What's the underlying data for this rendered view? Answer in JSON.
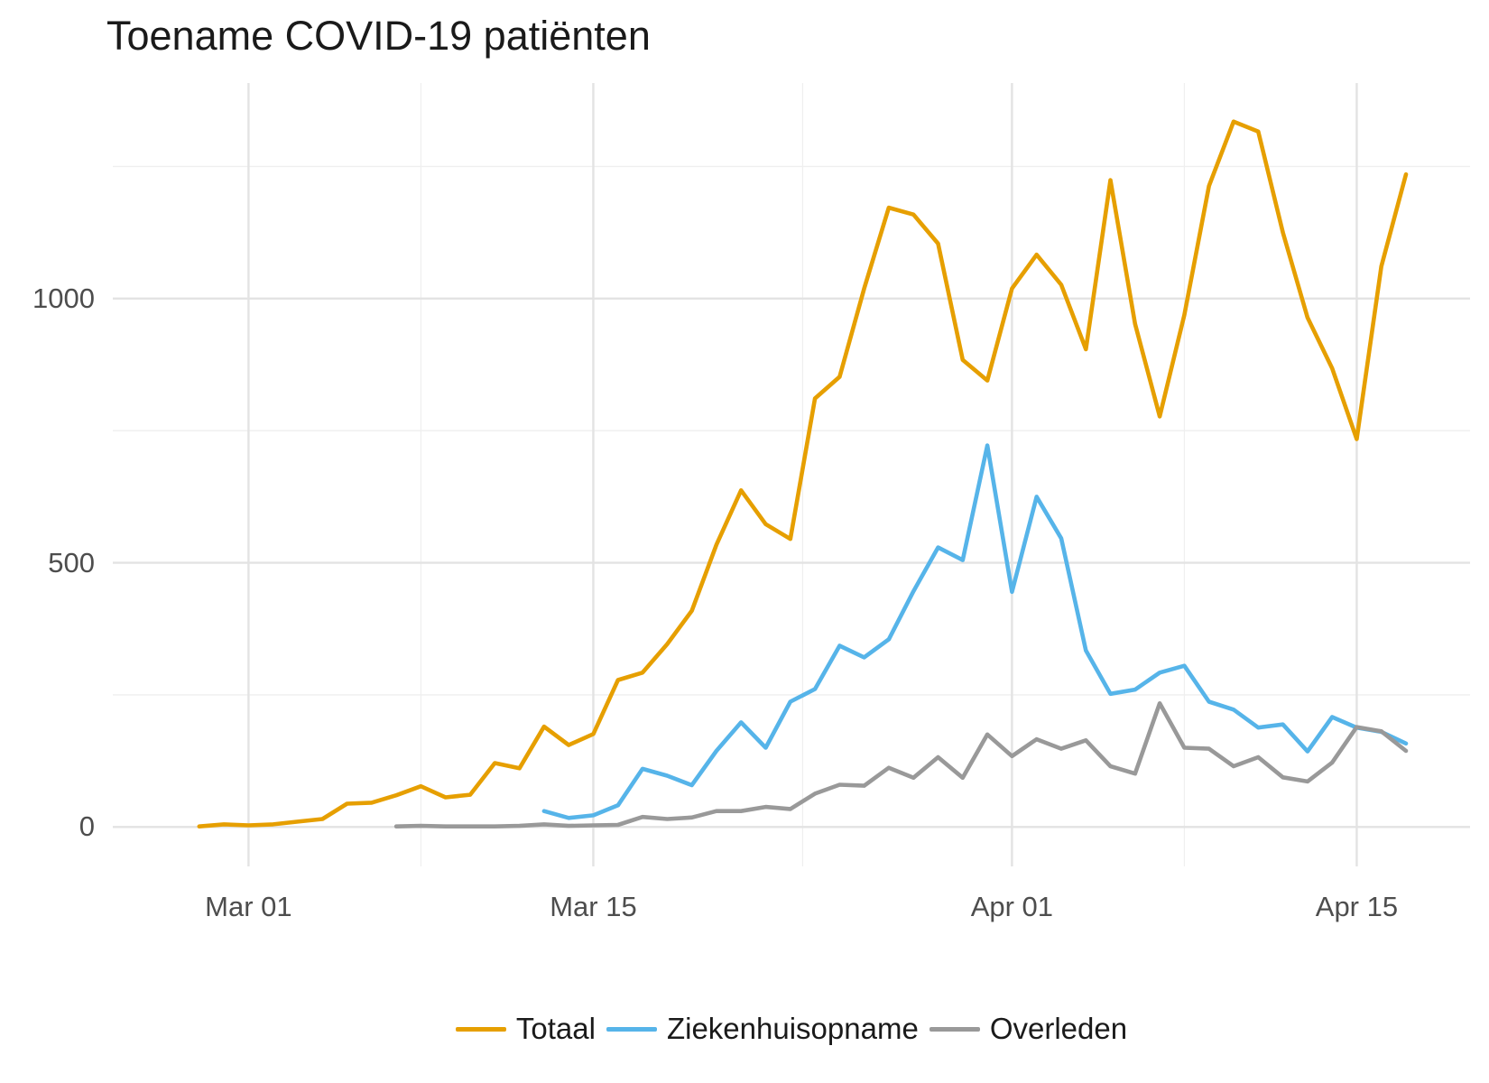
{
  "title": "Toename COVID-19 patiënten",
  "chart_data": {
    "type": "line",
    "title": "Toename COVID-19 patiënten",
    "xlabel": "",
    "ylabel": "",
    "grid": true,
    "legend_position": "bottom",
    "x": [
      "Feb 28",
      "Feb 29",
      "Mar 01",
      "Mar 02",
      "Mar 03",
      "Mar 04",
      "Mar 05",
      "Mar 06",
      "Mar 07",
      "Mar 08",
      "Mar 09",
      "Mar 10",
      "Mar 11",
      "Mar 12",
      "Mar 13",
      "Mar 14",
      "Mar 15",
      "Mar 16",
      "Mar 17",
      "Mar 18",
      "Mar 19",
      "Mar 20",
      "Mar 21",
      "Mar 22",
      "Mar 23",
      "Mar 24",
      "Mar 25",
      "Mar 26",
      "Mar 27",
      "Mar 28",
      "Mar 29",
      "Mar 30",
      "Mar 31",
      "Apr 01",
      "Apr 02",
      "Apr 03",
      "Apr 04",
      "Apr 05",
      "Apr 06",
      "Apr 07",
      "Apr 08",
      "Apr 09",
      "Apr 10",
      "Apr 11",
      "Apr 12",
      "Apr 13",
      "Apr 14",
      "Apr 15",
      "Apr 16",
      "Apr 17"
    ],
    "series": [
      {
        "name": "Totaal",
        "color": "#E69F00",
        "values": [
          1,
          5,
          3,
          5,
          10,
          15,
          44,
          46,
          60,
          77,
          56,
          61,
          121,
          111,
          190,
          155,
          176,
          278,
          292,
          346,
          409,
          534,
          637,
          573,
          545,
          811,
          852,
          1019,
          1172,
          1159,
          1104,
          884,
          845,
          1019,
          1083,
          1026,
          904,
          1224,
          952,
          777,
          969,
          1213,
          1335,
          1316,
          1125,
          964,
          868,
          734,
          1061,
          1235
        ]
      },
      {
        "name": "Ziekenhuisopname",
        "color": "#56B4E9",
        "values": [
          null,
          null,
          null,
          null,
          null,
          null,
          null,
          null,
          null,
          null,
          null,
          null,
          null,
          null,
          30,
          17,
          22,
          41,
          110,
          97,
          79,
          144,
          198,
          150,
          237,
          261,
          343,
          321,
          355,
          446,
          529,
          505,
          722,
          445,
          625,
          546,
          334,
          252,
          260,
          292,
          305,
          237,
          222,
          188,
          194,
          143,
          208,
          188,
          180,
          158
        ]
      },
      {
        "name": "Overleden",
        "color": "#999999",
        "values": [
          null,
          null,
          null,
          null,
          null,
          null,
          null,
          null,
          1,
          2,
          1,
          1,
          1,
          2,
          5,
          2,
          3,
          4,
          19,
          15,
          18,
          30,
          30,
          38,
          34,
          63,
          80,
          78,
          112,
          93,
          132,
          93,
          175,
          134,
          166,
          148,
          164,
          115,
          101,
          234,
          150,
          148,
          115,
          132,
          94,
          86,
          122,
          189,
          181,
          144
        ]
      }
    ],
    "x_axis": {
      "major_ticks": [
        {
          "label": "Mar 01"
        },
        {
          "label": "Mar 15"
        },
        {
          "label": "Apr 01"
        },
        {
          "label": "Apr 15"
        }
      ],
      "minor_indices": [
        9,
        24.5,
        40
      ]
    },
    "y_axis": {
      "ticks": [
        0,
        500,
        1000
      ],
      "minor": [
        250,
        750,
        1250
      ],
      "range": [
        0,
        1414
      ]
    }
  }
}
